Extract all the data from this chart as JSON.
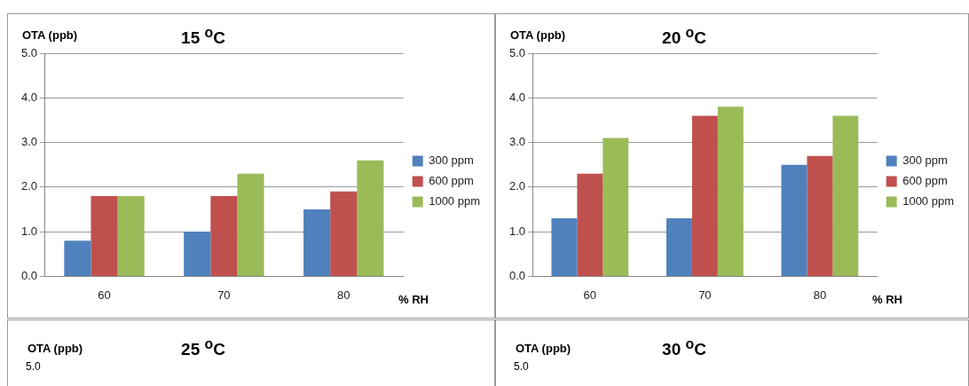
{
  "chart_data": [
    {
      "type": "bar",
      "title": "15 $^{o}$C",
      "ylabel": "OTA (ppb)",
      "xlabel": "% RH",
      "categories": [
        "60",
        "70",
        "80"
      ],
      "series": [
        {
          "name": "300 ppm",
          "color": "#4f81bd",
          "values": [
            0.8,
            1.0,
            1.5
          ]
        },
        {
          "name": "600 ppm",
          "color": "#c0504d",
          "values": [
            1.8,
            1.8,
            1.9
          ]
        },
        {
          "name": "1000 ppm",
          "color": "#9bbb59",
          "values": [
            1.8,
            2.3,
            2.6
          ]
        }
      ],
      "ylim": [
        0,
        5
      ],
      "yticks": [
        {
          "value": 0,
          "label": "0.0"
        },
        {
          "value": 1,
          "label": "1.0"
        },
        {
          "value": 2,
          "label": "2.0"
        },
        {
          "value": 3,
          "label": "3.0"
        },
        {
          "value": 4,
          "label": "4.0"
        },
        {
          "value": 5,
          "label": "5.0"
        }
      ],
      "grid": "y",
      "legend": "right"
    },
    {
      "type": "bar",
      "title": "20 $^{o}$C",
      "ylabel": "OTA (ppb)",
      "xlabel": "% RH",
      "categories": [
        "60",
        "70",
        "80"
      ],
      "series": [
        {
          "name": "300 ppm",
          "color": "#4f81bd",
          "values": [
            1.3,
            1.3,
            2.5
          ]
        },
        {
          "name": "600 ppm",
          "color": "#c0504d",
          "values": [
            2.3,
            3.6,
            2.7
          ]
        },
        {
          "name": "1000 ppm",
          "color": "#9bbb59",
          "values": [
            3.1,
            3.8,
            3.6
          ]
        }
      ],
      "ylim": [
        0,
        5
      ],
      "yticks": [
        {
          "value": 0,
          "label": "0.0"
        },
        {
          "value": 1,
          "label": "1.0"
        },
        {
          "value": 2,
          "label": "2.0"
        },
        {
          "value": 3,
          "label": "3.0"
        },
        {
          "value": 4,
          "label": "4.0"
        },
        {
          "value": 5,
          "label": "5.0"
        }
      ],
      "grid": "y",
      "legend": "right"
    },
    {
      "type": "other",
      "title": "25 $^{o}$C",
      "ylabel": "OTA (ppb)",
      "annotations": [
        "5.0"
      ]
    },
    {
      "type": "other",
      "title": "30 $^{o}$C",
      "ylabel": "OTA (ppb)",
      "annotations": [
        "5.0"
      ]
    }
  ]
}
